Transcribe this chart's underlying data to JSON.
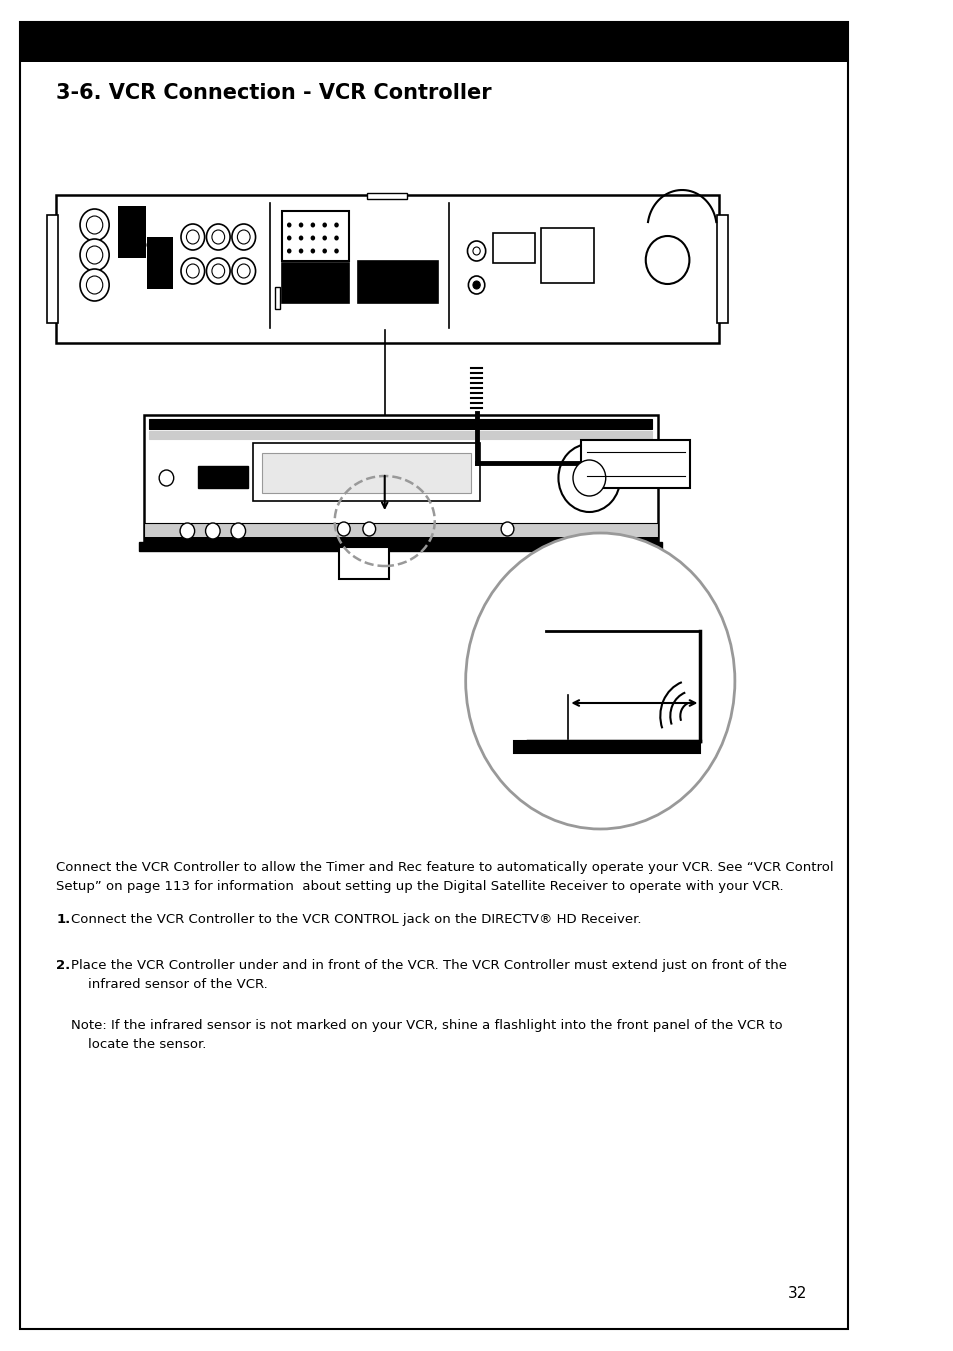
{
  "title": "3-6. VCR Connection - VCR Controller",
  "page_number": "32",
  "bg_color": "#ffffff",
  "header_bar_color": "#000000",
  "text_color": "#000000",
  "gray_color": "#999999",
  "body_text": "Connect the VCR Controller to allow the Timer and Rec feature to automatically operate your VCR. See “VCR Control\nSetup” on page 113 for information  about setting up the Digital Satellite Receiver to operate with your VCR.",
  "item1_text": "Connect the VCR Controller to the VCR CONTROL jack on the DIRECTV® HD Receiver.",
  "item2_text": "Place the VCR Controller under and in front of the VCR. The VCR Controller must extend just on front of the\n    infrared sensor of the VCR.",
  "note_text": "Note: If the infrared sensor is not marked on your VCR, shine a flashlight into the front panel of the VCR to\n    locate the sensor.",
  "title_fontsize": 15,
  "body_fontsize": 9.5
}
